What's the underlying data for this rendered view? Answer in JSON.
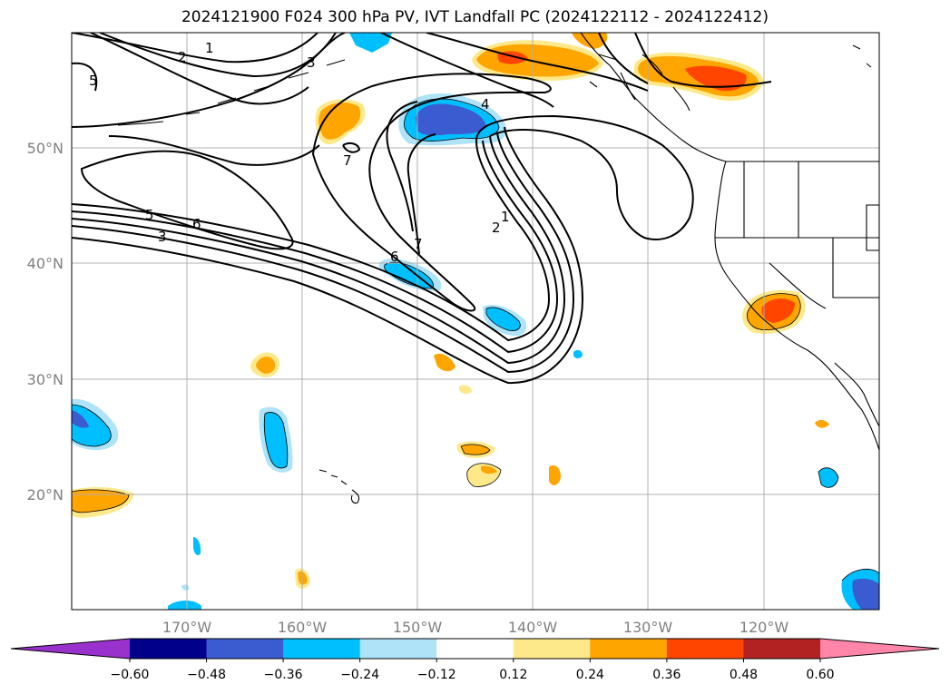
{
  "title": "2024121900 F024 300 hPa PV, IVT Landfall PC (2024122112 - 2024122412)",
  "longitude_labels": [
    "170°W",
    "160°W",
    "150°W",
    "140°W",
    "130°W",
    "120°W"
  ],
  "latitude_labels": [
    "50°N",
    "40°N",
    "30°N",
    "20°N"
  ],
  "contour_labels": [
    "1",
    "2",
    "3",
    "5",
    "4",
    "7",
    "5",
    "6",
    "3",
    "6",
    "7",
    "2",
    "1"
  ],
  "colorbar": {
    "ticks": [
      "−0.60",
      "−0.48",
      "−0.36",
      "−0.24",
      "−0.12",
      "0.12",
      "0.24",
      "0.36",
      "0.48",
      "0.60"
    ],
    "colors": [
      "#9932cc",
      "#00008b",
      "#3b5bd0",
      "#00bfff",
      "#aee3f8",
      "#ffffff",
      "#fde98a",
      "#ffa500",
      "#ff4500",
      "#b22222",
      "#ff85a9"
    ]
  },
  "layers": [
    "300 hPa PV contours (black)",
    "IVT landfall PC shading",
    "coastlines",
    "state borders",
    "graticule"
  ]
}
